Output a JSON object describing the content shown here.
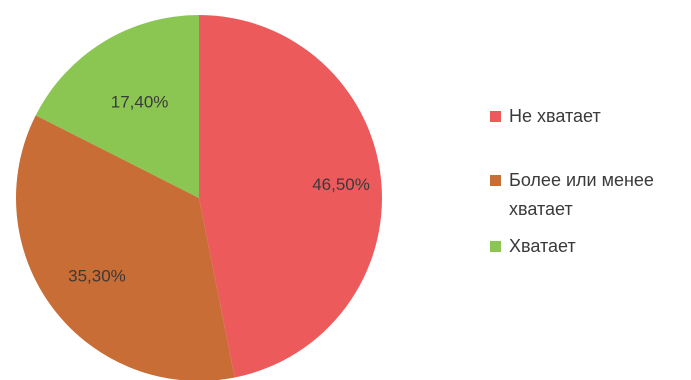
{
  "colors": {
    "series": [
      "#ec5a5c",
      "#c86d36",
      "#8bc653"
    ],
    "text": "#3a3a3a"
  },
  "chart_data": {
    "type": "pie",
    "categories": [
      "Не хватает",
      "Более или менее хватает",
      "Хватает"
    ],
    "values": [
      46.5,
      35.3,
      17.4
    ],
    "data_labels": [
      "46,50%",
      "35,30%",
      "17,40%"
    ],
    "title": "",
    "legend_position": "right"
  }
}
